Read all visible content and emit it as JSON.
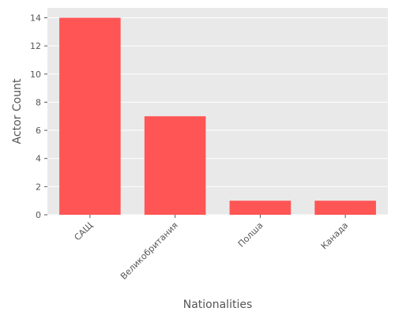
{
  "chart_data": {
    "type": "bar",
    "title": "",
    "xlabel": "Nationalities",
    "ylabel": "Actor Count",
    "categories": [
      "САЩ",
      "Великобритания",
      "Полша",
      "Канада"
    ],
    "values": [
      14,
      7,
      1,
      1
    ],
    "ylim": [
      0,
      14.7
    ],
    "yticks": [
      0,
      2,
      4,
      6,
      8,
      10,
      12,
      14
    ],
    "grid": true,
    "legend": "none",
    "colors": {
      "bar": "#ff5555",
      "plot_background": "#e9e9e9",
      "grid": "#ffffff",
      "text": "#555555"
    }
  }
}
